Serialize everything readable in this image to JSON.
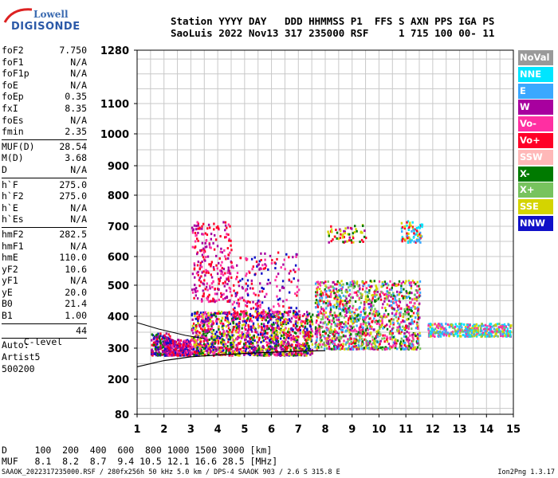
{
  "logo": {
    "line1": "Lowell",
    "line2": "DIGISONDE"
  },
  "header": {
    "line1": "Station YYYY DAY   DDD HHMMSS P1  FFS S AXN PPS IGA PS",
    "line2": "SaoLuis 2022 Nov13 317 235000 RSF     1 715 100 00- 11"
  },
  "params_group1": [
    {
      "name": "foF2",
      "value": "7.750"
    },
    {
      "name": "foF1",
      "value": "N/A"
    },
    {
      "name": "foF1p",
      "value": "N/A"
    },
    {
      "name": "foE",
      "value": "N/A"
    },
    {
      "name": "foEp",
      "value": "0.35"
    },
    {
      "name": "fxI",
      "value": "8.35"
    },
    {
      "name": "foEs",
      "value": "N/A"
    },
    {
      "name": "fmin",
      "value": "2.35"
    }
  ],
  "params_group2": [
    {
      "name": "MUF(D)",
      "value": "28.54"
    },
    {
      "name": "M(D)",
      "value": "3.68"
    },
    {
      "name": "D",
      "value": "N/A"
    }
  ],
  "params_group3": [
    {
      "name": "h`F",
      "value": "275.0"
    },
    {
      "name": "h`F2",
      "value": "275.0"
    },
    {
      "name": "h`E",
      "value": "N/A"
    },
    {
      "name": "h`Es",
      "value": "N/A"
    }
  ],
  "params_group4": [
    {
      "name": "hmF2",
      "value": "282.5"
    },
    {
      "name": "hmF1",
      "value": "N/A"
    },
    {
      "name": "hmE",
      "value": "110.0"
    },
    {
      "name": "yF2",
      "value": "10.6"
    },
    {
      "name": "yF1",
      "value": "N/A"
    },
    {
      "name": "yE",
      "value": "20.0"
    },
    {
      "name": "B0",
      "value": "21.4"
    },
    {
      "name": "B1",
      "value": "1.00"
    }
  ],
  "clevel": {
    "name": "C-level",
    "value": "44"
  },
  "auto": {
    "line1": "Auto:",
    "line2": "Artist5",
    "line3": "500200"
  },
  "footer": {
    "d_row": "D     100  200  400  600  800 1000 1500 3000 [km]",
    "muf_row": "MUF   8.1  8.2  8.7  9.4 10.5 12.1 16.6 28.5 [MHz]",
    "file_info": "SAAOK_2022317235000.RSF / 280fx256h 50 kHz 5.0 km / DPS-4 SAAOK 903 / 2.6 S 315.8 E",
    "version": "Ion2Png 1.3.17"
  },
  "legend": [
    {
      "label": "NoVal",
      "color": "#999999"
    },
    {
      "label": "NNE",
      "color": "#00e5ff"
    },
    {
      "label": "E",
      "color": "#3aa8ff"
    },
    {
      "label": "W",
      "color": "#a8009f"
    },
    {
      "label": "Vo-",
      "color": "#ff2fa2"
    },
    {
      "label": "Vo+",
      "color": "#ff0028"
    },
    {
      "label": "SSW",
      "color": "#ffb8b8"
    },
    {
      "label": "X-",
      "color": "#007a00"
    },
    {
      "label": "X+",
      "color": "#77c35e"
    },
    {
      "label": "SSE",
      "color": "#d4d400"
    },
    {
      "label": "NNW",
      "color": "#1010c8"
    }
  ],
  "chart_data": {
    "type": "scatter",
    "xlim": [
      1,
      15
    ],
    "x_ticks": [
      "1",
      "2",
      "3",
      "4",
      "5",
      "6",
      "7",
      "8",
      "9",
      "10",
      "11",
      "12",
      "13",
      "14",
      "15"
    ],
    "y_ticks": [
      "80",
      "200",
      "300",
      "400",
      "500",
      "600",
      "700",
      "800",
      "900",
      "1000",
      "1100",
      "1280"
    ],
    "ylim": [
      80,
      1280
    ],
    "grid": true,
    "clusters": [
      {
        "f": [
          1.5,
          2.2
        ],
        "h": [
          280,
          350
        ],
        "density": 200,
        "colors": [
          "#1010c8",
          "#a8009f",
          "#007a00",
          "#ff0028"
        ]
      },
      {
        "f": [
          2.0,
          3.0
        ],
        "h": [
          280,
          330
        ],
        "density": 300,
        "colors": [
          "#1010c8",
          "#a8009f",
          "#ff0028",
          "#ff2fa2"
        ]
      },
      {
        "f": [
          3.0,
          7.5
        ],
        "h": [
          280,
          420
        ],
        "density": 1400,
        "colors": [
          "#ff0028",
          "#a8009f",
          "#ff2fa2",
          "#1010c8",
          "#007a00",
          "#d4d400"
        ]
      },
      {
        "f": [
          3.0,
          4.5
        ],
        "h": [
          450,
          720
        ],
        "density": 260,
        "colors": [
          "#a8009f",
          "#ff2fa2",
          "#ff0028"
        ]
      },
      {
        "f": [
          4.5,
          7.0
        ],
        "h": [
          400,
          620
        ],
        "density": 220,
        "colors": [
          "#a8009f",
          "#ff2fa2",
          "#ff0028",
          "#1010c8"
        ]
      },
      {
        "f": [
          7.6,
          11.5
        ],
        "h": [
          300,
          520
        ],
        "density": 1300,
        "colors": [
          "#ff0028",
          "#ff2fa2",
          "#a8009f",
          "#007a00",
          "#d4d400",
          "#3aa8ff",
          "#77c35e"
        ]
      },
      {
        "f": [
          8.0,
          9.5
        ],
        "h": [
          650,
          710
        ],
        "density": 60,
        "colors": [
          "#d4d400",
          "#ff0028",
          "#007a00",
          "#a8009f"
        ]
      },
      {
        "f": [
          10.8,
          11.6
        ],
        "h": [
          650,
          720
        ],
        "density": 80,
        "colors": [
          "#00e5ff",
          "#3aa8ff",
          "#ff0028",
          "#d4d400"
        ]
      },
      {
        "f": [
          11.8,
          14.9
        ],
        "h": [
          340,
          380
        ],
        "density": 420,
        "colors": [
          "#00e5ff",
          "#3aa8ff",
          "#77c35e",
          "#ff2fa2",
          "#d4d400"
        ]
      }
    ],
    "trace_curve": [
      [
        1.0,
        240
      ],
      [
        2.0,
        260
      ],
      [
        3.0,
        272
      ],
      [
        4.0,
        278
      ],
      [
        5.0,
        283
      ],
      [
        6.0,
        287
      ],
      [
        7.0,
        290
      ],
      [
        8.0,
        292
      ]
    ],
    "trace_upper": [
      [
        1.0,
        380
      ],
      [
        1.8,
        360
      ],
      [
        2.8,
        340
      ],
      [
        3.5,
        330
      ]
    ]
  }
}
